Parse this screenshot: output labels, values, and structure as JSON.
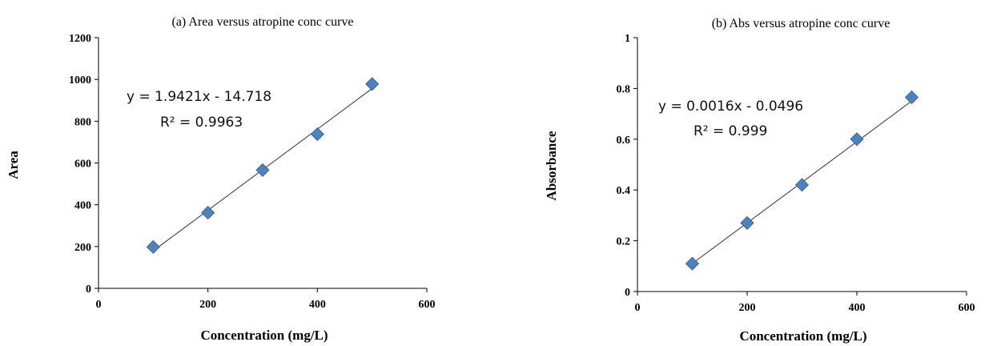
{
  "chart_data": [
    {
      "type": "scatter",
      "title": "(a) Area versus atropine conc curve",
      "xlabel": "Concentration (mg/L)",
      "ylabel": "Area",
      "xlim": [
        0,
        600
      ],
      "ylim": [
        0,
        1200
      ],
      "x_ticks": [
        "0",
        "200",
        "400",
        "600"
      ],
      "y_ticks": [
        "0",
        "200",
        "400",
        "600",
        "800",
        "1000",
        "1200"
      ],
      "x": [
        100,
        200,
        300,
        400,
        500
      ],
      "y": [
        198,
        362,
        566,
        738,
        978
      ],
      "trendline": {
        "slope": 1.9421,
        "intercept": -14.718
      },
      "equation": "y = 1.9421x - 14.718",
      "r2_label": "R² = 0.9963",
      "grid": false,
      "marker_color": "#4f81bd"
    },
    {
      "type": "scatter",
      "title": "(b) Abs versus atropine conc curve",
      "xlabel": "Concentration (mg/L)",
      "ylabel": "Absorbance",
      "xlim": [
        0,
        600
      ],
      "ylim": [
        0,
        1
      ],
      "x_ticks": [
        "0",
        "200",
        "400",
        "600"
      ],
      "y_ticks": [
        "0",
        "0.2",
        "0.4",
        "0.6",
        "0.8",
        "1"
      ],
      "x": [
        100,
        200,
        300,
        400,
        500
      ],
      "y": [
        0.11,
        0.27,
        0.42,
        0.6,
        0.765
      ],
      "trendline": {
        "slope": 0.0016,
        "intercept": -0.0496
      },
      "equation": "y = 0.0016x - 0.0496",
      "r2_label": "R² = 0.999",
      "grid": false,
      "marker_color": "#4f81bd"
    }
  ]
}
